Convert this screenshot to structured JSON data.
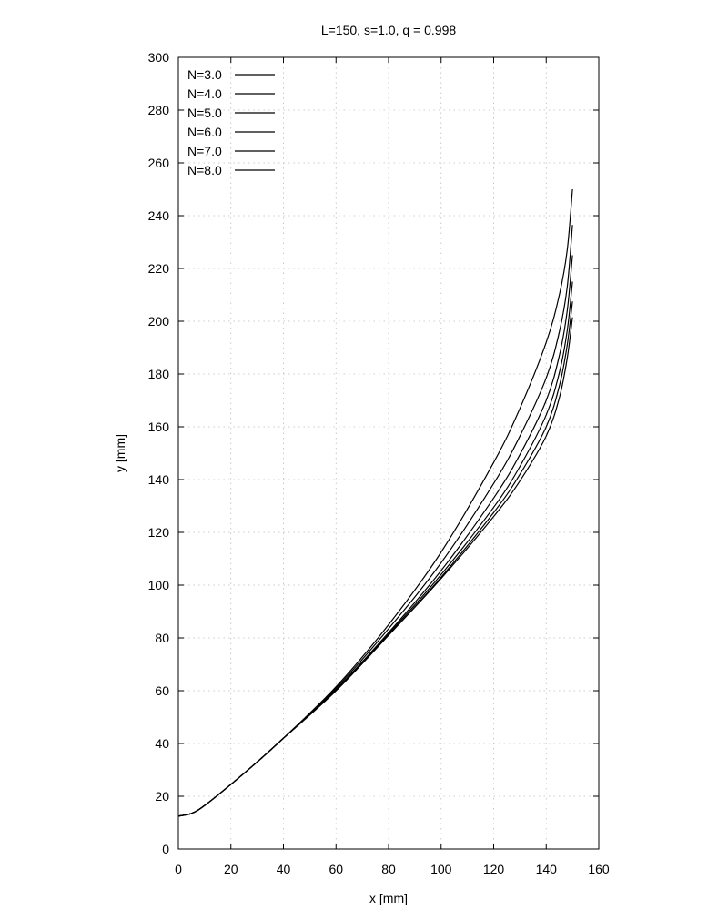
{
  "chart_data": {
    "type": "line",
    "title": "L=150, s=1.0, q = 0.998",
    "xlabel": "x [mm]",
    "ylabel": "y [mm]",
    "xlim": [
      0,
      160
    ],
    "ylim": [
      0,
      300
    ],
    "xticks": [
      0,
      20,
      40,
      60,
      80,
      100,
      120,
      140,
      160
    ],
    "yticks": [
      0,
      20,
      40,
      60,
      80,
      100,
      120,
      140,
      160,
      180,
      200,
      220,
      240,
      260,
      280,
      300
    ],
    "grid": true,
    "legend_position": "top-left",
    "series": [
      {
        "name": "N=3.0",
        "x": [
          0,
          5,
          10,
          20,
          30,
          40,
          60,
          80,
          100,
          120,
          130,
          140,
          145,
          148,
          150
        ],
        "y": [
          12.5,
          13.5,
          16.5,
          24.5,
          33,
          42,
          61.5,
          85,
          112.5,
          146.5,
          167,
          192,
          210,
          227,
          250
        ]
      },
      {
        "name": "N=4.0",
        "x": [
          0,
          5,
          10,
          20,
          30,
          40,
          60,
          80,
          100,
          120,
          130,
          140,
          145,
          148,
          150
        ],
        "y": [
          12.5,
          13.5,
          16.5,
          24.5,
          33,
          42,
          61,
          83.5,
          108.5,
          138.5,
          156.5,
          178.5,
          196,
          213,
          236.5
        ]
      },
      {
        "name": "N=5.0",
        "x": [
          0,
          5,
          10,
          20,
          30,
          40,
          60,
          80,
          100,
          120,
          130,
          140,
          145,
          148,
          150
        ],
        "y": [
          12.5,
          13.5,
          16.5,
          24.5,
          33,
          42,
          60.5,
          82,
          105.5,
          133,
          149.5,
          170,
          187,
          204,
          225
        ]
      },
      {
        "name": "N=6.0",
        "x": [
          0,
          5,
          10,
          20,
          30,
          40,
          60,
          80,
          100,
          120,
          130,
          140,
          145,
          148,
          150
        ],
        "y": [
          12.5,
          13.5,
          16.5,
          24.5,
          33,
          42,
          60,
          81.5,
          104,
          129.5,
          145,
          164.5,
          180.5,
          196.5,
          215
        ]
      },
      {
        "name": "N=7.0",
        "x": [
          0,
          5,
          10,
          20,
          30,
          40,
          60,
          80,
          100,
          120,
          130,
          140,
          145,
          148,
          150
        ],
        "y": [
          12.5,
          13.5,
          16.5,
          24.5,
          33,
          42,
          60,
          81,
          103,
          127.5,
          142,
          160,
          175.5,
          191,
          207.5
        ]
      },
      {
        "name": "N=8.0",
        "x": [
          0,
          5,
          10,
          20,
          30,
          40,
          60,
          80,
          100,
          120,
          130,
          140,
          145,
          148,
          150
        ],
        "y": [
          12.5,
          13.5,
          16.5,
          24.5,
          33,
          42,
          60,
          81,
          102.5,
          126,
          139.5,
          156.5,
          171,
          186,
          201.5
        ]
      }
    ]
  }
}
